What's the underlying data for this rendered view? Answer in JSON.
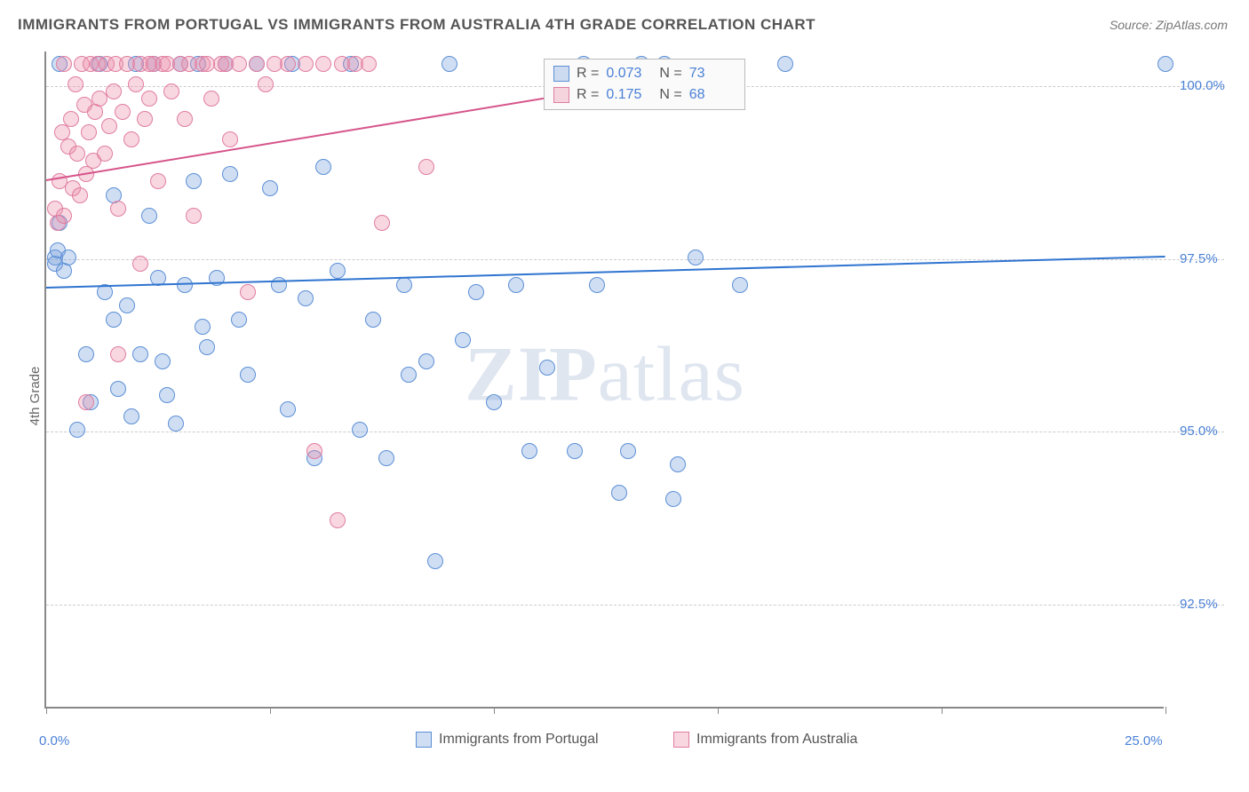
{
  "title": "IMMIGRANTS FROM PORTUGAL VS IMMIGRANTS FROM AUSTRALIA 4TH GRADE CORRELATION CHART",
  "source": "Source: ZipAtlas.com",
  "ylabel": "4th Grade",
  "watermark_bold": "ZIP",
  "watermark_light": "atlas",
  "chart": {
    "type": "scatter",
    "xlim": [
      0,
      25
    ],
    "ylim": [
      91,
      100.5
    ],
    "x_ticks": [
      0,
      5,
      10,
      15,
      20,
      25
    ],
    "x_tick_labels": {
      "0": "0.0%",
      "25": "25.0%"
    },
    "y_ticks": [
      92.5,
      95.0,
      97.5,
      100.0
    ],
    "y_tick_labels": [
      "92.5%",
      "95.0%",
      "97.5%",
      "100.0%"
    ],
    "grid_color": "#cccccc",
    "background_color": "#ffffff",
    "axis_color": "#888888",
    "label_color": "#4a80d6",
    "marker_radius": 9,
    "marker_stroke_width": 1.5,
    "series": [
      {
        "name": "Immigrants from Portugal",
        "fill": "rgba(120,160,220,0.35)",
        "stroke": "#5b8fd6",
        "trend_color": "#2f74d0",
        "trend": {
          "x1": 0,
          "y1": 97.1,
          "x2": 25,
          "y2": 97.55
        },
        "R": "0.073",
        "N": "73",
        "points": [
          [
            0.2,
            97.5
          ],
          [
            0.2,
            97.4
          ],
          [
            0.25,
            97.6
          ],
          [
            0.3,
            100.3
          ],
          [
            0.3,
            98.0
          ],
          [
            0.4,
            97.3
          ],
          [
            0.5,
            97.5
          ],
          [
            0.7,
            95.0
          ],
          [
            0.9,
            96.1
          ],
          [
            1.0,
            95.4
          ],
          [
            1.2,
            100.3
          ],
          [
            1.3,
            97.0
          ],
          [
            1.5,
            98.4
          ],
          [
            1.5,
            96.6
          ],
          [
            1.6,
            95.6
          ],
          [
            1.8,
            96.8
          ],
          [
            1.9,
            95.2
          ],
          [
            2.0,
            100.3
          ],
          [
            2.1,
            96.1
          ],
          [
            2.3,
            98.1
          ],
          [
            2.4,
            100.3
          ],
          [
            2.5,
            97.2
          ],
          [
            2.6,
            96.0
          ],
          [
            2.7,
            95.5
          ],
          [
            2.9,
            95.1
          ],
          [
            3.0,
            100.3
          ],
          [
            3.1,
            97.1
          ],
          [
            3.3,
            98.6
          ],
          [
            3.4,
            100.3
          ],
          [
            3.5,
            96.5
          ],
          [
            3.6,
            96.2
          ],
          [
            3.8,
            97.2
          ],
          [
            4.0,
            100.3
          ],
          [
            4.1,
            98.7
          ],
          [
            4.3,
            96.6
          ],
          [
            4.5,
            95.8
          ],
          [
            4.7,
            100.3
          ],
          [
            5.0,
            98.5
          ],
          [
            5.2,
            97.1
          ],
          [
            5.4,
            95.3
          ],
          [
            5.5,
            100.3
          ],
          [
            5.8,
            96.9
          ],
          [
            6.0,
            94.6
          ],
          [
            6.2,
            98.8
          ],
          [
            6.5,
            97.3
          ],
          [
            6.8,
            100.3
          ],
          [
            7.0,
            95.0
          ],
          [
            7.3,
            96.6
          ],
          [
            7.6,
            94.6
          ],
          [
            8.0,
            97.1
          ],
          [
            8.1,
            95.8
          ],
          [
            8.5,
            96.0
          ],
          [
            8.7,
            93.1
          ],
          [
            9.0,
            100.3
          ],
          [
            9.3,
            96.3
          ],
          [
            9.6,
            97.0
          ],
          [
            10.0,
            95.4
          ],
          [
            10.5,
            97.1
          ],
          [
            10.8,
            94.7
          ],
          [
            11.2,
            95.9
          ],
          [
            11.8,
            94.7
          ],
          [
            12.0,
            100.3
          ],
          [
            12.3,
            97.1
          ],
          [
            12.8,
            94.1
          ],
          [
            13.0,
            94.7
          ],
          [
            13.3,
            100.3
          ],
          [
            13.8,
            100.3
          ],
          [
            14.0,
            94.0
          ],
          [
            14.5,
            97.5
          ],
          [
            15.5,
            97.1
          ],
          [
            16.5,
            100.3
          ],
          [
            25.0,
            100.3
          ],
          [
            14.1,
            94.5
          ]
        ]
      },
      {
        "name": "Immigrants from Australia",
        "fill": "rgba(235,140,170,0.35)",
        "stroke": "#e07da0",
        "trend_color": "#d6548a",
        "trend": {
          "x1": 0,
          "y1": 98.65,
          "x2": 15.5,
          "y2": 100.3
        },
        "R": "0.175",
        "N": "68",
        "points": [
          [
            0.2,
            98.2
          ],
          [
            0.25,
            98.0
          ],
          [
            0.3,
            98.6
          ],
          [
            0.35,
            99.3
          ],
          [
            0.4,
            100.3
          ],
          [
            0.4,
            98.1
          ],
          [
            0.5,
            99.1
          ],
          [
            0.55,
            99.5
          ],
          [
            0.6,
            98.5
          ],
          [
            0.65,
            100.0
          ],
          [
            0.7,
            99.0
          ],
          [
            0.75,
            98.4
          ],
          [
            0.8,
            100.3
          ],
          [
            0.85,
            99.7
          ],
          [
            0.9,
            98.7
          ],
          [
            0.95,
            99.3
          ],
          [
            1.0,
            100.3
          ],
          [
            1.05,
            98.9
          ],
          [
            1.1,
            99.6
          ],
          [
            1.15,
            100.3
          ],
          [
            1.2,
            99.8
          ],
          [
            1.3,
            99.0
          ],
          [
            1.35,
            100.3
          ],
          [
            1.4,
            99.4
          ],
          [
            1.5,
            99.9
          ],
          [
            1.55,
            100.3
          ],
          [
            1.6,
            98.2
          ],
          [
            1.7,
            99.6
          ],
          [
            1.8,
            100.3
          ],
          [
            1.9,
            99.2
          ],
          [
            2.0,
            100.0
          ],
          [
            2.1,
            100.3
          ],
          [
            2.2,
            99.5
          ],
          [
            2.3,
            99.8
          ],
          [
            2.4,
            100.3
          ],
          [
            2.5,
            98.6
          ],
          [
            2.6,
            100.3
          ],
          [
            2.8,
            99.9
          ],
          [
            3.0,
            100.3
          ],
          [
            3.1,
            99.5
          ],
          [
            3.3,
            98.1
          ],
          [
            3.5,
            100.3
          ],
          [
            3.7,
            99.8
          ],
          [
            3.9,
            100.3
          ],
          [
            4.1,
            99.2
          ],
          [
            4.3,
            100.3
          ],
          [
            4.5,
            97.0
          ],
          [
            4.7,
            100.3
          ],
          [
            4.9,
            100.0
          ],
          [
            5.1,
            100.3
          ],
          [
            5.4,
            100.3
          ],
          [
            5.8,
            100.3
          ],
          [
            6.0,
            94.7
          ],
          [
            6.2,
            100.3
          ],
          [
            6.5,
            93.7
          ],
          [
            6.6,
            100.3
          ],
          [
            6.9,
            100.3
          ],
          [
            7.2,
            100.3
          ],
          [
            7.5,
            98.0
          ],
          [
            8.5,
            98.8
          ],
          [
            1.6,
            96.1
          ],
          [
            2.1,
            97.4
          ],
          [
            0.9,
            95.4
          ],
          [
            2.3,
            100.3
          ],
          [
            2.7,
            100.3
          ],
          [
            3.2,
            100.3
          ],
          [
            3.6,
            100.3
          ],
          [
            4.0,
            100.3
          ]
        ]
      }
    ]
  },
  "stats_labels": {
    "r": "R =",
    "n": "N ="
  },
  "legend": {
    "series1": "Immigrants from Portugal",
    "series2": "Immigrants from Australia"
  }
}
